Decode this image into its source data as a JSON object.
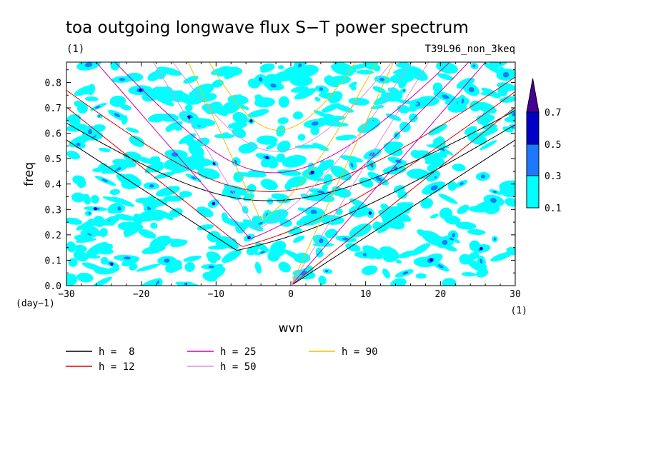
{
  "chart_data": {
    "type": "heatmap",
    "title": "toa outgoing longwave flux S−T power spectrum",
    "title_unit": "(1)",
    "run_label": "T39L96_non_3keq",
    "xlabel": "wvn",
    "ylabel": "freq",
    "x_unit": "(1)",
    "y_unit": "(day−1)",
    "xlim": [
      -30,
      30
    ],
    "ylim": [
      0,
      0.88
    ],
    "x_ticks": [
      -30,
      -20,
      -10,
      0,
      10,
      20,
      30
    ],
    "x_tick_labels": [
      "−30",
      "−20",
      "−10",
      "0",
      "10",
      "20",
      "30"
    ],
    "y_ticks": [
      0.0,
      0.1,
      0.2,
      0.3,
      0.4,
      0.5,
      0.6,
      0.7,
      0.8
    ],
    "y_tick_labels": [
      "0.0",
      "0.1",
      "0.2",
      "0.3",
      "0.4",
      "0.5",
      "0.6",
      "0.7",
      "0.8"
    ],
    "contour_levels": [
      0.1,
      0.3,
      0.5,
      0.7
    ],
    "contour_level_labels": [
      "0.1",
      "0.3",
      "0.5",
      "0.7"
    ],
    "level_colors": [
      "#00ffff",
      "#1e78ff",
      "#0000c8",
      "#460096"
    ],
    "blob_seed": 7,
    "dispersion_curves": [
      {
        "label": "h =  8",
        "h": 8,
        "color": "#000000"
      },
      {
        "label": "h = 12",
        "h": 12,
        "color": "#e00000"
      },
      {
        "label": "h = 25",
        "h": 25,
        "color": "#d000b0"
      },
      {
        "label": "h = 50",
        "h": 50,
        "color": "#e090e0"
      },
      {
        "label": "h = 90",
        "h": 90,
        "color": "#f0c000"
      }
    ]
  }
}
